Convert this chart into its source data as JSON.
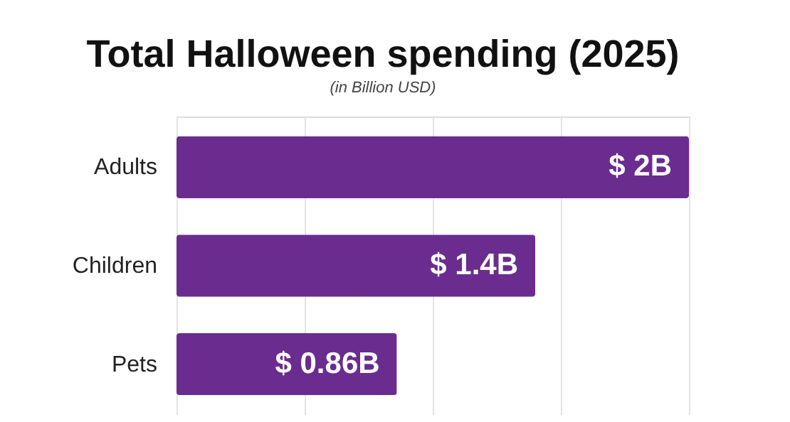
{
  "chart_data": {
    "type": "bar",
    "orientation": "horizontal",
    "title": "Total Halloween spending (2025)",
    "subtitle": "(in Billion USD)",
    "categories": [
      "Adults",
      "Children",
      "Pets"
    ],
    "values": [
      2,
      1.4,
      0.86
    ],
    "value_labels": [
      "$ 2B",
      "$ 1.4B",
      "$ 0.86B"
    ],
    "color": "#6a2c8e",
    "xlim": [
      0,
      2
    ],
    "xticks": [
      0,
      0.5,
      1,
      1.5,
      2
    ],
    "grid": "x",
    "tick_labels": "y"
  }
}
